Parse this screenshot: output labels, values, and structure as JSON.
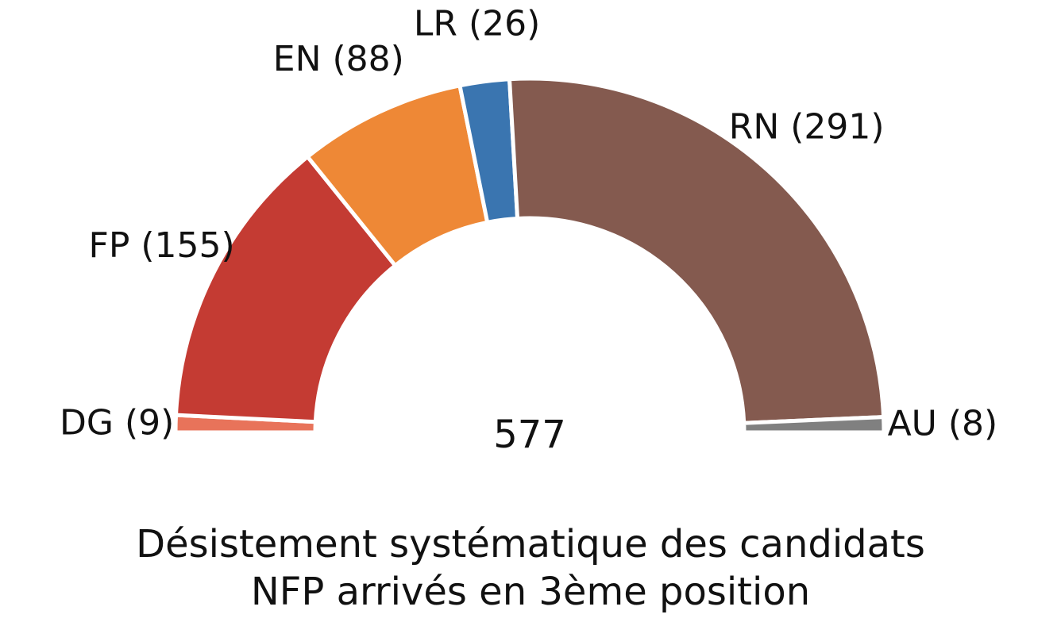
{
  "chart_data": {
    "type": "pie",
    "variant": "semicircle-parliament",
    "title_lines": [
      "Désistement systématique des candidats",
      "NFP arrivés en 3ème position"
    ],
    "total": 577,
    "total_label": "577",
    "segments": [
      {
        "name": "DG",
        "value": 9,
        "label": "DG (9)",
        "color": "#e8735a"
      },
      {
        "name": "FP",
        "value": 155,
        "label": "FP (155)",
        "color": "#c43b33"
      },
      {
        "name": "EN",
        "value": 88,
        "label": "EN (88)",
        "color": "#ee8836"
      },
      {
        "name": "LR",
        "value": 26,
        "label": "LR (26)",
        "color": "#3a75b0"
      },
      {
        "name": "RN",
        "value": 291,
        "label": "RN (291)",
        "color": "#845a4f"
      },
      {
        "name": "AU",
        "value": 8,
        "label": "AU (8)",
        "color": "#808080"
      }
    ]
  }
}
